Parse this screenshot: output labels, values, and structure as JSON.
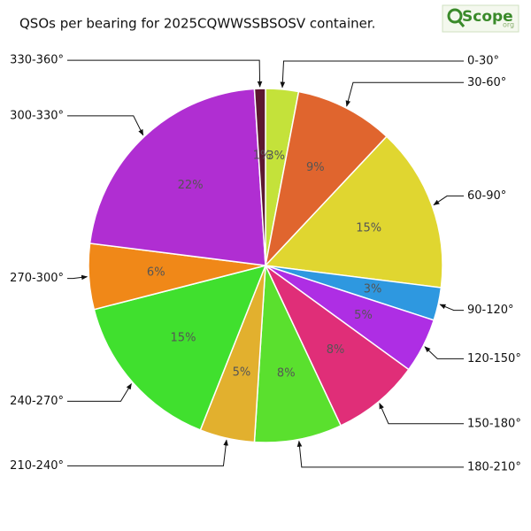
{
  "chart_data": {
    "type": "pie",
    "title": "QSOs per bearing for 2025CQWWSSBSOSV container.",
    "logo": {
      "name": "Scope",
      "domain": "org"
    },
    "categories": [
      "0-30°",
      "30-60°",
      "60-90°",
      "90-120°",
      "120-150°",
      "150-180°",
      "180-210°",
      "210-240°",
      "240-270°",
      "270-300°",
      "300-330°",
      "330-360°"
    ],
    "values": [
      3,
      9,
      15,
      3,
      5,
      8,
      8,
      5,
      15,
      6,
      22,
      1
    ],
    "value_labels": [
      "3%",
      "9%",
      "15%",
      "3%",
      "5%",
      "8%",
      "8%",
      "5%",
      "15%",
      "6%",
      "22%",
      "1%"
    ],
    "colors": [
      "#c4e23a",
      "#e0652e",
      "#e0d630",
      "#2e98e0",
      "#ae2ee4",
      "#e02e78",
      "#5ae02e",
      "#e2b02e",
      "#40e02e",
      "#f08818",
      "#b02ed2",
      "#5c1830"
    ]
  }
}
